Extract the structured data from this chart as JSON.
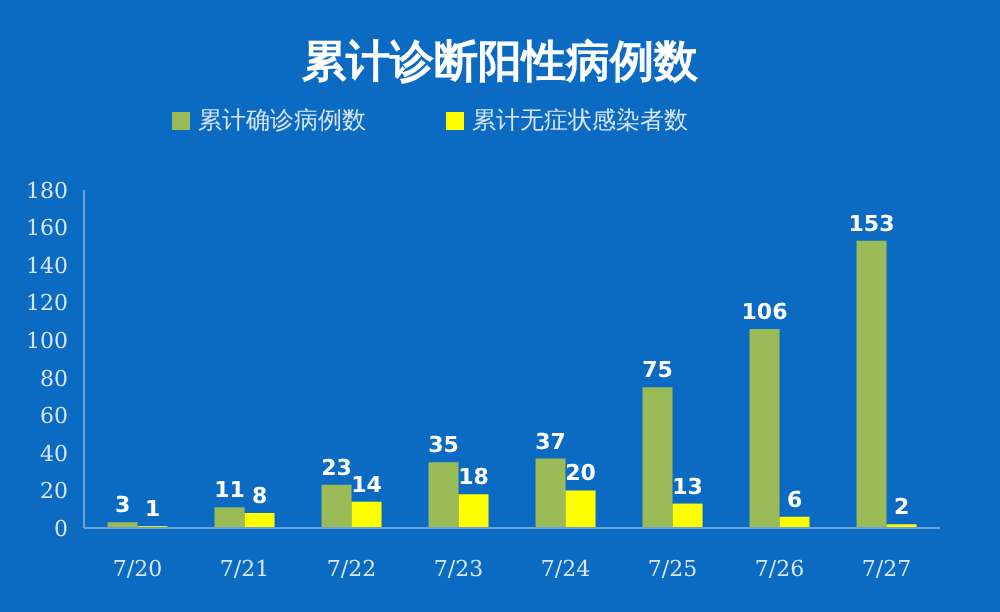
{
  "chart_data": {
    "type": "bar",
    "title": "累计诊断阳性病例数",
    "categories": [
      "7/20",
      "7/21",
      "7/22",
      "7/23",
      "7/24",
      "7/25",
      "7/26",
      "7/27"
    ],
    "series": [
      {
        "name": "累计确诊病例数",
        "color": "#9bbb59",
        "values": [
          3,
          11,
          23,
          35,
          37,
          75,
          106,
          153
        ]
      },
      {
        "name": "累计无症状感染者数",
        "color": "#ffff00",
        "values": [
          1,
          8,
          14,
          18,
          20,
          13,
          6,
          2
        ]
      }
    ],
    "ylim": [
      0,
      180
    ],
    "yticks": [
      0,
      20,
      40,
      60,
      80,
      100,
      120,
      140,
      160,
      180
    ],
    "grid": false,
    "legend": "top",
    "data_labels": true
  }
}
